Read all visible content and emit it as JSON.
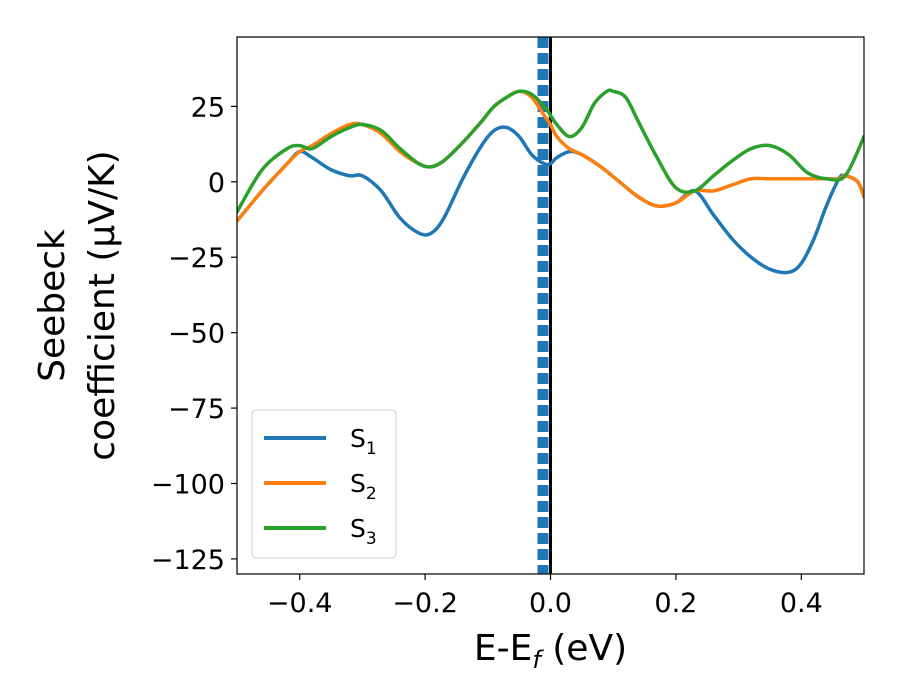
{
  "chart_data": {
    "type": "line",
    "xlabel_main": "E-E",
    "xlabel_sub": "f",
    "xlabel_unit": " (eV)",
    "ylabel_line1": "Seebeck",
    "ylabel_line2": "coefficient  (μV/K)",
    "xlim": [
      -0.5,
      0.5
    ],
    "ylim": [
      -130,
      48
    ],
    "xticks": [
      -0.4,
      -0.2,
      0.0,
      0.2,
      0.4
    ],
    "xtick_labels": [
      "−0.4",
      "−0.2",
      "0.0",
      "0.2",
      "0.4"
    ],
    "yticks": [
      25,
      0,
      -25,
      -50,
      -75,
      -100,
      -125
    ],
    "ytick_labels": [
      "25",
      "0",
      "−25",
      "−50",
      "−75",
      "−100",
      "−125"
    ],
    "grid": false,
    "legend_position": "lower-left",
    "vlines": [
      {
        "x": 0.0,
        "color": "#000000",
        "style": "solid"
      },
      {
        "x": -0.012,
        "color": "#1f77b4",
        "style": "dashed"
      }
    ],
    "series": [
      {
        "name": "S",
        "subscript": "1",
        "color": "#1f77b4",
        "x": [
          -0.5,
          -0.46,
          -0.42,
          -0.4,
          -0.38,
          -0.35,
          -0.32,
          -0.3,
          -0.27,
          -0.24,
          -0.21,
          -0.19,
          -0.17,
          -0.14,
          -0.11,
          -0.09,
          -0.07,
          -0.05,
          -0.03,
          -0.01,
          0.0,
          0.01,
          0.03,
          0.05,
          0.08,
          0.11,
          0.14,
          0.17,
          0.2,
          0.23,
          0.26,
          0.29,
          0.32,
          0.35,
          0.38,
          0.4,
          0.42,
          0.44,
          0.46,
          0.47,
          0.49,
          0.5
        ],
        "y": [
          -13,
          -3,
          6,
          10,
          8,
          4,
          2,
          2,
          -3,
          -12,
          -17,
          -17,
          -12,
          1,
          12,
          17,
          18,
          15,
          9,
          6,
          6,
          8,
          10,
          9,
          5,
          0,
          -5,
          -8,
          -7,
          -3,
          -11,
          -19,
          -25,
          -29,
          -30,
          -27,
          -19,
          -8,
          1,
          2,
          0,
          -5
        ]
      },
      {
        "name": "S",
        "subscript": "2",
        "color": "#ff7f0e",
        "x": [
          -0.5,
          -0.46,
          -0.42,
          -0.4,
          -0.38,
          -0.35,
          -0.32,
          -0.3,
          -0.27,
          -0.24,
          -0.21,
          -0.19,
          -0.17,
          -0.14,
          -0.11,
          -0.09,
          -0.07,
          -0.05,
          -0.03,
          -0.01,
          0.0,
          0.01,
          0.03,
          0.05,
          0.08,
          0.11,
          0.14,
          0.17,
          0.2,
          0.23,
          0.26,
          0.29,
          0.32,
          0.35,
          0.38,
          0.4,
          0.42,
          0.44,
          0.46,
          0.47,
          0.49,
          0.5
        ],
        "y": [
          -13,
          -3,
          6,
          10,
          12,
          16,
          19,
          19,
          16,
          10,
          6,
          5,
          7,
          13,
          20,
          25,
          28,
          30,
          28,
          22,
          19,
          15,
          11,
          9,
          5,
          0,
          -5,
          -8,
          -7,
          -3,
          -3,
          -1,
          1,
          1,
          1,
          1,
          1,
          1,
          1,
          2,
          0,
          -5
        ]
      },
      {
        "name": "S",
        "subscript": "3",
        "color": "#2ca02c",
        "x": [
          -0.5,
          -0.46,
          -0.42,
          -0.4,
          -0.38,
          -0.35,
          -0.32,
          -0.3,
          -0.27,
          -0.24,
          -0.21,
          -0.19,
          -0.17,
          -0.14,
          -0.11,
          -0.09,
          -0.07,
          -0.05,
          -0.03,
          -0.01,
          0.0,
          0.01,
          0.03,
          0.05,
          0.07,
          0.09,
          0.1,
          0.12,
          0.14,
          0.17,
          0.2,
          0.23,
          0.26,
          0.29,
          0.32,
          0.35,
          0.38,
          0.41,
          0.44,
          0.47,
          0.5
        ],
        "y": [
          -10,
          4,
          11,
          12,
          11,
          15,
          18,
          19,
          17,
          11,
          6,
          5,
          7,
          13,
          20,
          25,
          28,
          30,
          29,
          25,
          22,
          19,
          15,
          18,
          26,
          30,
          30,
          28,
          20,
          8,
          -2,
          -3,
          2,
          7,
          11,
          12,
          9,
          3,
          1,
          2,
          15
        ]
      }
    ]
  }
}
